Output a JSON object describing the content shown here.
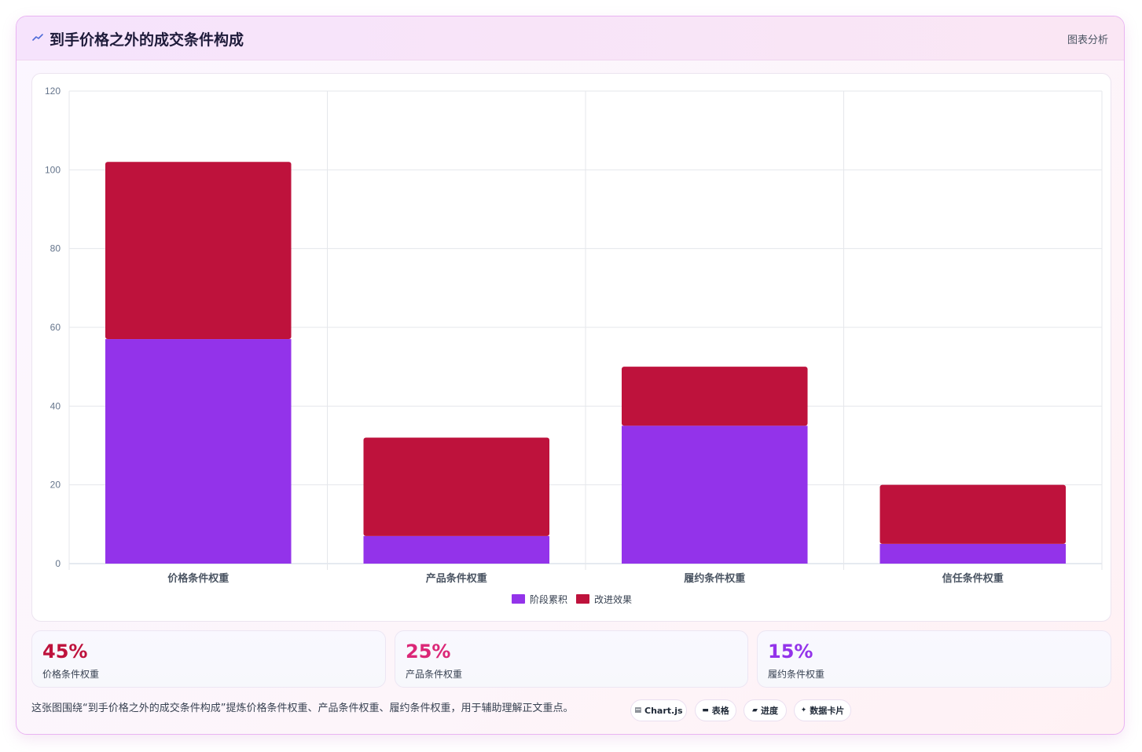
{
  "header": {
    "title": "到手价格之外的成交条件构成",
    "tag": "图表分析"
  },
  "chart_data": {
    "type": "bar",
    "stacked": true,
    "categories": [
      "价格条件权重",
      "产品条件权重",
      "履约条件权重",
      "信任条件权重"
    ],
    "series": [
      {
        "name": "阶段累积",
        "color": "#9333ea",
        "values": [
          57,
          7,
          35,
          5
        ]
      },
      {
        "name": "改进效果",
        "color": "#be123c",
        "values": [
          45,
          25,
          15,
          15
        ]
      }
    ],
    "ylim": [
      0,
      120
    ],
    "yticks": [
      0,
      20,
      40,
      60,
      80,
      100,
      120
    ],
    "grid": true,
    "legend": "bottom"
  },
  "stats": [
    {
      "value": "45%",
      "label": "价格条件权重",
      "color": "#be123c"
    },
    {
      "value": "25%",
      "label": "产品条件权重",
      "color": "#db2777"
    },
    {
      "value": "15%",
      "label": "履约条件权重",
      "color": "#9333ea"
    }
  ],
  "note": "这张图围绕“到手价格之外的成交条件构成”提炼价格条件权重、产品条件权重、履约条件权重，用于辅助理解正文重点。",
  "chips": [
    {
      "icon": "▤",
      "icon_name": "chart-icon",
      "label": "Chart.js"
    },
    {
      "icon": "▬",
      "icon_name": "table-icon",
      "label": "表格"
    },
    {
      "icon": "▰",
      "icon_name": "progress-icon",
      "label": "进度"
    },
    {
      "icon": "✦",
      "icon_name": "sparkle-icon",
      "label": "数据卡片"
    }
  ]
}
